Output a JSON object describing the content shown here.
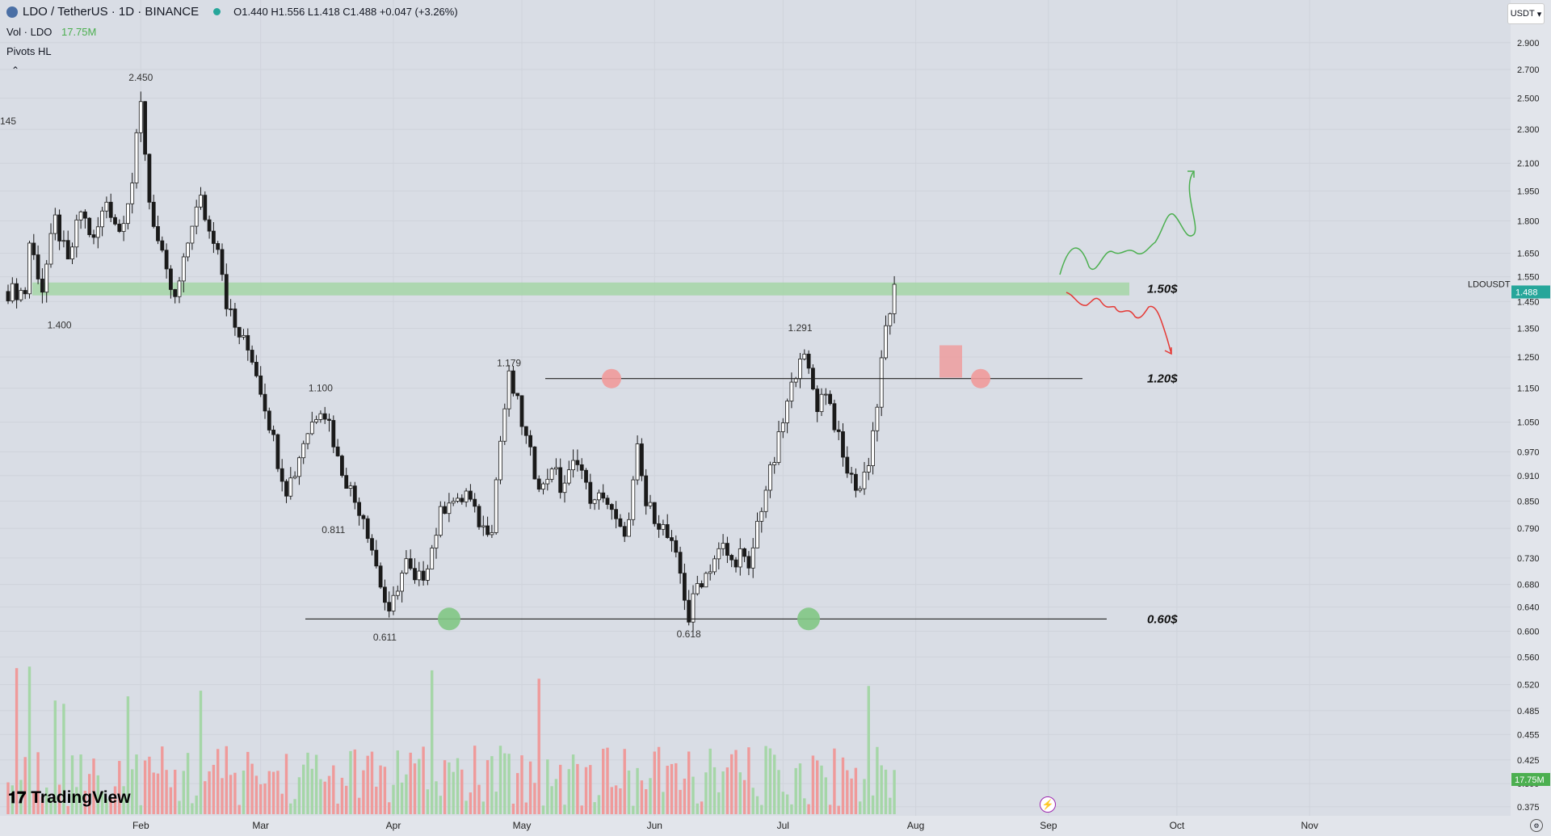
{
  "header": {
    "symbol": "LDO / TetherUS · 1D · BINANCE",
    "ohlc": "O1.440 H1.556 L1.418 C1.488 +0.047 (+3.26%)"
  },
  "volume_label": {
    "name": "Vol · LDO",
    "value": "17.75M"
  },
  "pivots_label": "Pivots HL",
  "collapse_icon": "⌃",
  "currency_selector": "USDT",
  "brand": "TradingView",
  "colors": {
    "up": "#a5d6a7",
    "down": "#ef9a9a",
    "candle": "#1a1a1a",
    "zone": "#a5d6a7"
  },
  "chart_data": {
    "type": "candlestick",
    "symbol_tag": "LDOUSDT",
    "last_price": "1.488",
    "volume_tag": "17.75M",
    "x_ticks": [
      {
        "label": "Feb",
        "day": 31
      },
      {
        "label": "Mar",
        "day": 59
      },
      {
        "label": "Apr",
        "day": 90
      },
      {
        "label": "May",
        "day": 120
      },
      {
        "label": "Jun",
        "day": 151
      },
      {
        "label": "Jul",
        "day": 181
      },
      {
        "label": "Aug",
        "day": 212
      },
      {
        "label": "Sep",
        "day": 243
      },
      {
        "label": "Oct",
        "day": 273
      },
      {
        "label": "Nov",
        "day": 304
      }
    ],
    "y_ticks": [
      "2.900",
      "2.700",
      "2.500",
      "2.300",
      "2.100",
      "1.950",
      "1.800",
      "1.650",
      "1.550",
      "1.450",
      "1.350",
      "1.250",
      "1.150",
      "1.050",
      "0.970",
      "0.910",
      "0.850",
      "0.790",
      "0.730",
      "0.680",
      "0.640",
      "0.600",
      "0.560",
      "0.520",
      "0.485",
      "0.455",
      "0.425",
      "0.399",
      "0.375"
    ],
    "price_path": [
      [
        5,
        1.7
      ],
      [
        8,
        1.5
      ],
      [
        11,
        1.8
      ],
      [
        14,
        1.6
      ],
      [
        17,
        1.85
      ],
      [
        20,
        1.7
      ],
      [
        23,
        1.9
      ],
      [
        26,
        1.75
      ],
      [
        29,
        2.0
      ],
      [
        31,
        2.45
      ],
      [
        33,
        1.9
      ],
      [
        35,
        1.7
      ],
      [
        37,
        1.55
      ],
      [
        39,
        1.45
      ],
      [
        41,
        1.6
      ],
      [
        43,
        1.8
      ],
      [
        45,
        1.9
      ],
      [
        47,
        1.75
      ],
      [
        49,
        1.7
      ],
      [
        51,
        1.45
      ],
      [
        53,
        1.35
      ],
      [
        55,
        1.3
      ],
      [
        57,
        1.25
      ],
      [
        59,
        1.15
      ],
      [
        61,
        1.05
      ],
      [
        63,
        0.95
      ],
      [
        65,
        0.88
      ],
      [
        67,
        0.92
      ],
      [
        69,
        1.0
      ],
      [
        71,
        1.05
      ],
      [
        73,
        1.1
      ],
      [
        75,
        1.05
      ],
      [
        77,
        0.95
      ],
      [
        79,
        0.9
      ],
      [
        81,
        0.85
      ],
      [
        83,
        0.82
      ],
      [
        85,
        0.75
      ],
      [
        87,
        0.68
      ],
      [
        89,
        0.62
      ],
      [
        91,
        0.68
      ],
      [
        93,
        0.72
      ],
      [
        95,
        0.68
      ],
      [
        97,
        0.7
      ],
      [
        99,
        0.75
      ],
      [
        101,
        0.82
      ],
      [
        103,
        0.86
      ],
      [
        105,
        0.84
      ],
      [
        107,
        0.87
      ],
      [
        109,
        0.82
      ],
      [
        111,
        0.79
      ],
      [
        113,
        0.8
      ],
      [
        115,
        1.0
      ],
      [
        117,
        1.18
      ],
      [
        119,
        1.1
      ],
      [
        121,
        1.0
      ],
      [
        123,
        0.92
      ],
      [
        125,
        0.88
      ],
      [
        127,
        0.94
      ],
      [
        129,
        0.88
      ],
      [
        131,
        0.91
      ],
      [
        133,
        0.96
      ],
      [
        135,
        0.88
      ],
      [
        137,
        0.84
      ],
      [
        139,
        0.87
      ],
      [
        141,
        0.82
      ],
      [
        143,
        0.78
      ],
      [
        145,
        0.8
      ],
      [
        147,
        0.97
      ],
      [
        149,
        0.84
      ],
      [
        151,
        0.82
      ],
      [
        153,
        0.79
      ],
      [
        155,
        0.75
      ],
      [
        157,
        0.7
      ],
      [
        159,
        0.62
      ],
      [
        161,
        0.68
      ],
      [
        163,
        0.7
      ],
      [
        165,
        0.73
      ],
      [
        167,
        0.75
      ],
      [
        169,
        0.72
      ],
      [
        171,
        0.74
      ],
      [
        173,
        0.7
      ],
      [
        175,
        0.8
      ],
      [
        177,
        0.88
      ],
      [
        179,
        0.95
      ],
      [
        181,
        1.05
      ],
      [
        183,
        1.15
      ],
      [
        185,
        1.27
      ],
      [
        187,
        1.2
      ],
      [
        189,
        1.1
      ],
      [
        191,
        1.15
      ],
      [
        193,
        1.05
      ],
      [
        195,
        0.95
      ],
      [
        197,
        0.9
      ],
      [
        199,
        0.88
      ],
      [
        201,
        0.95
      ],
      [
        203,
        1.1
      ],
      [
        205,
        1.35
      ],
      [
        207,
        1.49
      ]
    ],
    "pivot_labels": [
      {
        "text": "145",
        "day": 0,
        "price": 2.33
      },
      {
        "text": "2.450",
        "day": 31,
        "price": 2.62
      },
      {
        "text": "1.400",
        "day": 12,
        "price": 1.35
      },
      {
        "text": "1.100",
        "day": 73,
        "price": 1.14
      },
      {
        "text": "0.811",
        "day": 76,
        "price": 0.78
      },
      {
        "text": "1.179",
        "day": 117,
        "price": 1.22
      },
      {
        "text": "0.611",
        "day": 88,
        "price": 0.585
      },
      {
        "text": "1.291",
        "day": 185,
        "price": 1.34
      },
      {
        "text": "0.618",
        "day": 159,
        "price": 0.59
      }
    ],
    "levels": [
      {
        "label": "1.50$",
        "price": 1.5,
        "type": "zone"
      },
      {
        "label": "1.20$",
        "price": 1.18,
        "type": "line"
      },
      {
        "label": "0.60$",
        "price": 0.62,
        "type": "line"
      }
    ],
    "scenarios": [
      {
        "name": "bull",
        "color": "#4caf50"
      },
      {
        "name": "bear",
        "color": "#e53935"
      }
    ]
  }
}
